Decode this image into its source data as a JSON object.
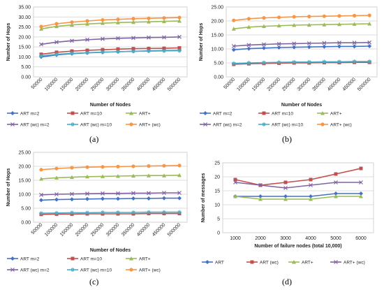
{
  "chart_data": [
    {
      "type": "line",
      "caption": "(a)",
      "xlabel": "Number of Nodes",
      "ylabel": "Number of Hops",
      "categories": [
        "50000",
        "100000",
        "150000",
        "200000",
        "250000",
        "300000",
        "350000",
        "400000",
        "450000",
        "500000"
      ],
      "ylim": [
        0,
        35
      ],
      "ytick_labels": [
        "0.00",
        "5.00",
        "10.00",
        "15.00",
        "20.00",
        "25.00",
        "30.00",
        "35.00"
      ],
      "grid": true,
      "legend_position": "bottom",
      "series": [
        {
          "name": "ART m=2",
          "color": "#4472C4",
          "marker": "diamond",
          "values": [
            10.0,
            11.0,
            11.6,
            12.0,
            12.3,
            12.6,
            12.8,
            13.0,
            13.2,
            13.3
          ]
        },
        {
          "name": "ART m=10",
          "color": "#C0504D",
          "marker": "square",
          "values": [
            11.3,
            12.3,
            12.9,
            13.3,
            13.6,
            13.9,
            14.1,
            14.2,
            14.3,
            14.5
          ]
        },
        {
          "name": "ART+",
          "color": "#9BBB59",
          "marker": "triangle",
          "values": [
            24.0,
            25.3,
            26.0,
            26.5,
            26.9,
            27.2,
            27.4,
            27.6,
            27.8,
            28.0
          ]
        },
        {
          "name": "ART (wc) m=2",
          "color": "#8064A2",
          "marker": "x",
          "values": [
            16.3,
            17.4,
            18.1,
            18.6,
            19.0,
            19.3,
            19.5,
            19.7,
            19.8,
            20.0
          ]
        },
        {
          "name": "ART (wc) m=10",
          "color": "#4BACC6",
          "marker": "star",
          "values": [
            10.5,
            11.3,
            11.8,
            12.1,
            12.4,
            12.6,
            12.8,
            12.9,
            13.0,
            13.1
          ]
        },
        {
          "name": "ART+ (wc)",
          "color": "#F79646",
          "marker": "circle",
          "values": [
            25.2,
            26.6,
            27.4,
            28.0,
            28.5,
            28.8,
            29.1,
            29.3,
            29.5,
            29.7
          ]
        }
      ]
    },
    {
      "type": "line",
      "caption": "(b)",
      "xlabel": "Number of Nodes",
      "ylabel": "Number of Hops",
      "categories": [
        "50000",
        "100000",
        "150000",
        "200000",
        "250000",
        "300000",
        "350000",
        "400000",
        "450000",
        "500000"
      ],
      "ylim": [
        0,
        25
      ],
      "ytick_labels": [
        "0.00",
        "5.00",
        "10.00",
        "15.00",
        "20.00",
        "25.00"
      ],
      "grid": true,
      "legend_position": "bottom",
      "series": [
        {
          "name": "ART m=2",
          "color": "#4472C4",
          "marker": "diamond",
          "values": [
            9.7,
            10.1,
            10.3,
            10.5,
            10.6,
            10.7,
            10.8,
            10.9,
            10.9,
            11.0
          ]
        },
        {
          "name": "ART m=10",
          "color": "#C0504D",
          "marker": "square",
          "values": [
            4.5,
            4.7,
            4.8,
            4.9,
            5.0,
            5.0,
            5.1,
            5.1,
            5.2,
            5.2
          ]
        },
        {
          "name": "ART+",
          "color": "#9BBB59",
          "marker": "triangle",
          "values": [
            17.2,
            17.8,
            18.1,
            18.3,
            18.5,
            18.6,
            18.7,
            18.8,
            18.9,
            19.0
          ]
        },
        {
          "name": "ART (wc) m=2",
          "color": "#8064A2",
          "marker": "x",
          "values": [
            11.0,
            11.4,
            11.6,
            11.8,
            11.9,
            12.0,
            12.1,
            12.2,
            12.2,
            12.3
          ]
        },
        {
          "name": "ART (wc) m=10",
          "color": "#4BACC6",
          "marker": "star",
          "values": [
            4.8,
            5.0,
            5.1,
            5.2,
            5.3,
            5.3,
            5.4,
            5.4,
            5.5,
            5.5
          ]
        },
        {
          "name": "ART+ (wc)",
          "color": "#F79646",
          "marker": "circle",
          "values": [
            20.2,
            20.8,
            21.1,
            21.3,
            21.5,
            21.6,
            21.7,
            21.8,
            21.9,
            22.0
          ]
        }
      ]
    },
    {
      "type": "line",
      "caption": "(c)",
      "xlabel": "Number of Nodes",
      "ylabel": "Number of Hops",
      "categories": [
        "50000",
        "100000",
        "150000",
        "200000",
        "250000",
        "300000",
        "350000",
        "400000",
        "450000",
        "500000"
      ],
      "ylim": [
        0,
        25
      ],
      "ytick_labels": [
        "0.00",
        "5.00",
        "10.00",
        "15.00",
        "20.00",
        "25.00"
      ],
      "grid": true,
      "legend_position": "bottom",
      "series": [
        {
          "name": "ART m=2",
          "color": "#4472C4",
          "marker": "diamond",
          "values": [
            7.9,
            8.1,
            8.2,
            8.3,
            8.4,
            8.4,
            8.5,
            8.5,
            8.6,
            8.6
          ]
        },
        {
          "name": "ART m=10",
          "color": "#C0504D",
          "marker": "square",
          "values": [
            2.8,
            2.9,
            2.9,
            3.0,
            3.0,
            3.0,
            3.0,
            3.1,
            3.1,
            3.1
          ]
        },
        {
          "name": "ART+",
          "color": "#9BBB59",
          "marker": "triangle",
          "values": [
            15.5,
            15.9,
            16.1,
            16.3,
            16.4,
            16.5,
            16.6,
            16.7,
            16.7,
            16.8
          ]
        },
        {
          "name": "ART (wc) m=2",
          "color": "#8064A2",
          "marker": "x",
          "values": [
            9.8,
            10.0,
            10.1,
            10.2,
            10.3,
            10.3,
            10.4,
            10.4,
            10.5,
            10.5
          ]
        },
        {
          "name": "ART (wc) m=10",
          "color": "#4BACC6",
          "marker": "star",
          "values": [
            3.2,
            3.3,
            3.4,
            3.4,
            3.5,
            3.5,
            3.5,
            3.6,
            3.6,
            3.6
          ]
        },
        {
          "name": "ART+ (wc)",
          "color": "#F79646",
          "marker": "circle",
          "values": [
            18.8,
            19.2,
            19.5,
            19.7,
            19.8,
            19.9,
            20.0,
            20.1,
            20.2,
            20.3
          ]
        }
      ]
    },
    {
      "type": "line",
      "caption": "(d)",
      "xlabel": "Number of failure nodes (total 10,000)",
      "ylabel": "Number of messages",
      "categories": [
        "1000",
        "2000",
        "3000",
        "4000",
        "5000",
        "6000"
      ],
      "ylim": [
        0,
        25
      ],
      "ytick_labels": [
        "0",
        "5",
        "10",
        "15",
        "20",
        "25"
      ],
      "grid": true,
      "legend_position": "bottom",
      "series": [
        {
          "name": "ART",
          "color": "#4472C4",
          "marker": "diamond",
          "values": [
            13,
            13,
            13,
            13,
            14,
            14
          ]
        },
        {
          "name": "ART (wc)",
          "color": "#C0504D",
          "marker": "square",
          "values": [
            19,
            17,
            18,
            19,
            21,
            23
          ]
        },
        {
          "name": "ART+",
          "color": "#9BBB59",
          "marker": "triangle",
          "values": [
            13,
            12,
            12,
            12,
            13,
            13
          ]
        },
        {
          "name": "ART+ (wc)",
          "color": "#8064A2",
          "marker": "x",
          "values": [
            18,
            17,
            16,
            17,
            18,
            18
          ]
        }
      ]
    }
  ]
}
